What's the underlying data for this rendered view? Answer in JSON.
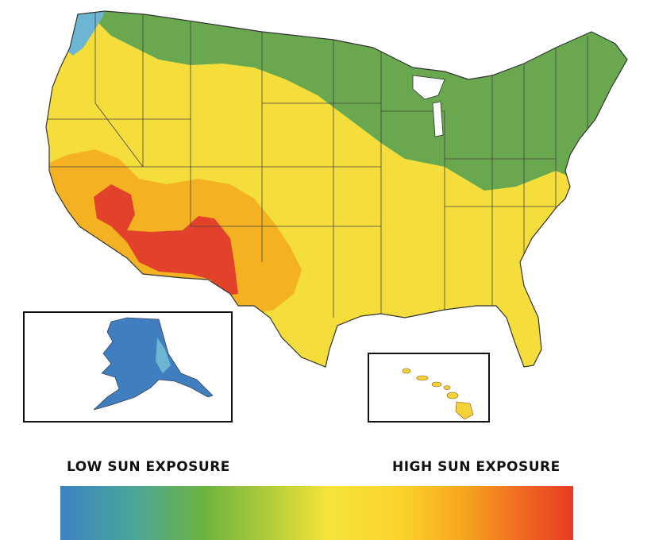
{
  "legend": {
    "low_label": "LOW SUN EXPOSURE",
    "high_label": "HIGH SUN EXPOSURE",
    "gradient_stops": [
      "#3b82c4",
      "#4aa69a",
      "#6db33f",
      "#b9cf3a",
      "#f5e43a",
      "#fbd42c",
      "#f7a81f",
      "#ef6a22",
      "#e63a22"
    ]
  },
  "zones": {
    "very_low": "#4e9bd0",
    "low": "#6aa84f",
    "moderate": "#f5dd3c",
    "high": "#f4b223",
    "very_high": "#e2412a"
  },
  "insets": [
    "alaska",
    "hawaii"
  ]
}
